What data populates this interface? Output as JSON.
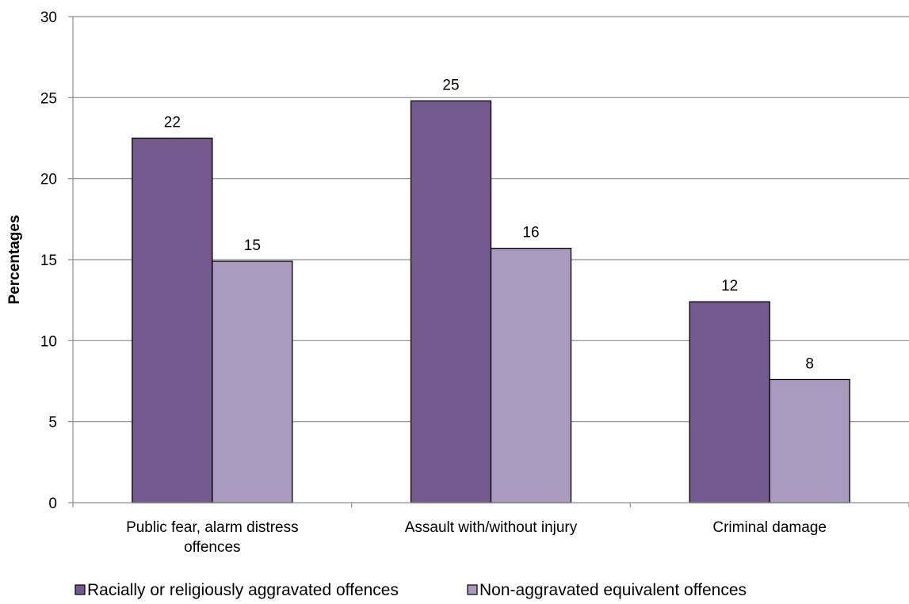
{
  "chart_data": {
    "type": "bar",
    "categories": [
      [
        "Public fear, alarm distress",
        "offences"
      ],
      [
        "Assault with/without injury"
      ],
      [
        "Criminal damage"
      ]
    ],
    "series": [
      {
        "name": "Racially or religiously aggravated offences",
        "values": [
          22.5,
          24.8,
          12.4
        ],
        "labels": [
          "22",
          "25",
          "12"
        ],
        "color": "#725a8e"
      },
      {
        "name": "Non-aggravated equivalent offences",
        "values": [
          14.9,
          15.7,
          7.6
        ],
        "labels": [
          "15",
          "16",
          "8"
        ],
        "color": "#a99bbf"
      }
    ],
    "ylabel": "Percentages",
    "ylim": [
      0,
      30
    ],
    "yticks": [
      0,
      5,
      10,
      15,
      20,
      25,
      30
    ],
    "grid": true,
    "legend_position": "bottom"
  }
}
